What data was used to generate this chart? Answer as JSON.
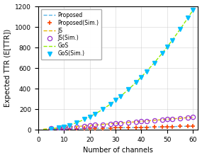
{
  "title": "",
  "xlabel": "Number of channels",
  "ylabel": "Expected TTR (E[TTR])",
  "xlim": [
    0,
    62
  ],
  "ylim": [
    0,
    1200
  ],
  "xticks": [
    0,
    10,
    20,
    30,
    40,
    50,
    60
  ],
  "yticks": [
    0,
    200,
    400,
    600,
    800,
    1000,
    1200
  ],
  "channels": [
    5,
    8,
    10,
    12,
    15,
    18,
    20,
    22,
    25,
    28,
    30,
    32,
    35,
    38,
    40,
    42,
    45,
    48,
    50,
    52,
    55,
    58,
    60
  ],
  "proposed_color": "#56B4E9",
  "proposed_sim_color": "#FF4500",
  "js_color": "#E6B800",
  "js_sim_color": "#9932CC",
  "gos_color": "#90EE00",
  "gos_sim_color": "#00BFFF",
  "figsize": [
    2.85,
    2.23
  ],
  "dpi": 100
}
